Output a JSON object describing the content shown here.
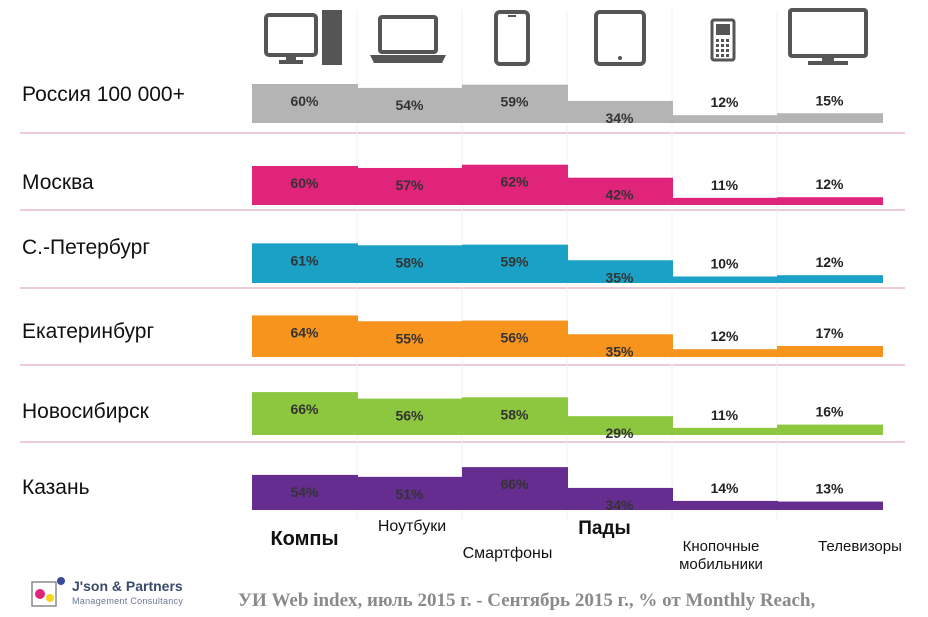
{
  "chart_data": {
    "type": "bar",
    "categories": [
      "Компы",
      "Ноутбуки",
      "Смартфоны",
      "Пады",
      "Кнопочные мобильники",
      "Телевизоры"
    ],
    "icons": [
      "desktop-computer-icon",
      "laptop-icon",
      "smartphone-icon",
      "tablet-icon",
      "feature-phone-icon",
      "tv-icon"
    ],
    "series": [
      {
        "name": "Россия 100 000+",
        "color": "#b4b4b4",
        "values": [
          60,
          54,
          59,
          34,
          12,
          15
        ]
      },
      {
        "name": "Москва",
        "color": "#e0247c",
        "values": [
          60,
          57,
          62,
          42,
          11,
          12
        ]
      },
      {
        "name": "С.-Петербург",
        "color": "#1ba1c6",
        "values": [
          61,
          58,
          59,
          35,
          10,
          12
        ]
      },
      {
        "name": "Екатеринбург",
        "color": "#f7941d",
        "values": [
          64,
          55,
          56,
          35,
          12,
          17
        ]
      },
      {
        "name": "Новосибирск",
        "color": "#8dc63f",
        "values": [
          66,
          56,
          58,
          29,
          11,
          16
        ]
      },
      {
        "name": "Казань",
        "color": "#662d91",
        "values": [
          54,
          51,
          66,
          34,
          14,
          13
        ]
      }
    ],
    "value_format": "{v}%",
    "separator_color": "#d89aa6"
  },
  "footer": {
    "brand": "J'son & Partners",
    "brand_sub": "Management Consultancy",
    "source": "УИ Web index, июль 2015 г. - Сентябрь 2015 г., % от Monthly Reach,"
  }
}
